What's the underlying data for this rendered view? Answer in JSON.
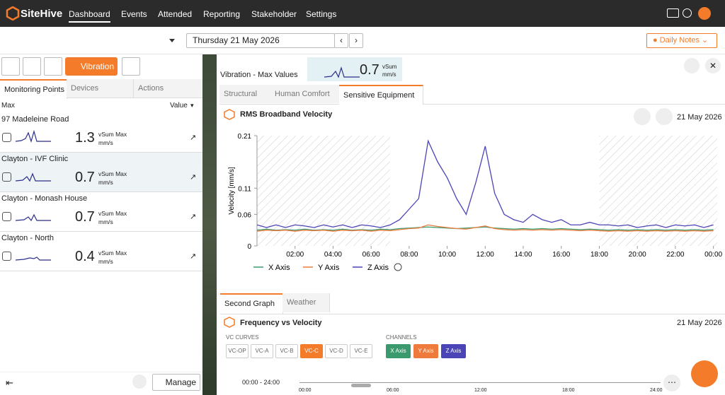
{
  "nav": {
    "brand": "SiteHive",
    "items": [
      "Dashboard",
      "Events",
      "Attended",
      "Reporting",
      "Stakeholder",
      "Settings"
    ]
  },
  "toolbar": {
    "date": "Thursday 21 May 2026",
    "notes": "Daily Notes"
  },
  "left": {
    "mode": "Vibration",
    "tabs": [
      "Monitoring Points",
      "Devices",
      "Actions"
    ],
    "col_left": "Max",
    "col_right": "Value",
    "points": [
      {
        "name": "97 Madeleine Road",
        "value": "1.3",
        "unit1": "vSum Max",
        "unit2": "mm/s"
      },
      {
        "name": "Clayton - IVF Clinic",
        "value": "0.7",
        "unit1": "vSum Max",
        "unit2": "mm/s"
      },
      {
        "name": "Clayton - Monash House",
        "value": "0.7",
        "unit1": "vSum Max",
        "unit2": "mm/s"
      },
      {
        "name": "Clayton - North",
        "value": "0.4",
        "unit1": "vSum Max",
        "unit2": "mm/s"
      }
    ],
    "manage": "Manage"
  },
  "right": {
    "heading": "Vibration - Max Values",
    "summary_value": "0.7",
    "summary_unit1": "vSum",
    "summary_unit2": "mm/s",
    "tabs": [
      "Structural",
      "Human Comfort",
      "Sensitive Equipment"
    ]
  },
  "chart_data": {
    "type": "line",
    "title": "RMS Broadband Velocity",
    "date": "21 May 2026",
    "y_label": "Velocity [mm/s]",
    "ylim": [
      0,
      0.21
    ],
    "yticks": [
      0,
      0.06,
      0.11,
      0.21
    ],
    "xlim": [
      0,
      24.2
    ],
    "xticks": [
      {
        "value": 2,
        "label": "02:00"
      },
      {
        "value": 4,
        "label": "04:00"
      },
      {
        "value": 6,
        "label": "06:00"
      },
      {
        "value": 8,
        "label": "08:00"
      },
      {
        "value": 10,
        "label": "10:00"
      },
      {
        "value": 12,
        "label": "12:00"
      },
      {
        "value": 14,
        "label": "14:00"
      },
      {
        "value": 16,
        "label": "16:00"
      },
      {
        "value": 18,
        "label": "18:00"
      },
      {
        "value": 20,
        "label": "20:00"
      },
      {
        "value": 22,
        "label": "22:00"
      },
      {
        "value": 24,
        "label": "00:00"
      }
    ],
    "shaded": [
      [
        0,
        7
      ],
      [
        18,
        24.2
      ]
    ],
    "x": [
      0,
      0.5,
      1,
      1.5,
      2,
      2.5,
      3,
      3.5,
      4,
      4.5,
      5,
      5.5,
      6,
      6.5,
      7,
      7.5,
      8,
      8.5,
      9,
      9.5,
      10,
      10.5,
      11,
      11.5,
      12,
      12.5,
      13,
      13.5,
      14,
      14.5,
      15,
      15.5,
      16,
      16.5,
      17,
      17.5,
      18,
      18.5,
      19,
      19.5,
      20,
      20.5,
      21,
      21.5,
      22,
      22.5,
      23,
      23.5,
      24
    ],
    "series": [
      {
        "name": "X Axis",
        "color": "#3a9a6e",
        "values": [
          0.03,
          0.032,
          0.03,
          0.031,
          0.03,
          0.032,
          0.03,
          0.031,
          0.03,
          0.032,
          0.03,
          0.031,
          0.03,
          0.032,
          0.031,
          0.033,
          0.034,
          0.035,
          0.036,
          0.035,
          0.034,
          0.033,
          0.034,
          0.035,
          0.036,
          0.034,
          0.033,
          0.032,
          0.033,
          0.032,
          0.033,
          0.032,
          0.033,
          0.032,
          0.031,
          0.032,
          0.031,
          0.03,
          0.031,
          0.03,
          0.031,
          0.03,
          0.031,
          0.03,
          0.031,
          0.03,
          0.031,
          0.03,
          0.031
        ]
      },
      {
        "name": "Y Axis",
        "color": "#ee7a3c",
        "values": [
          0.028,
          0.03,
          0.029,
          0.03,
          0.028,
          0.03,
          0.029,
          0.03,
          0.028,
          0.03,
          0.029,
          0.03,
          0.028,
          0.03,
          0.029,
          0.031,
          0.033,
          0.034,
          0.04,
          0.037,
          0.035,
          0.033,
          0.032,
          0.035,
          0.038,
          0.033,
          0.031,
          0.03,
          0.031,
          0.03,
          0.031,
          0.03,
          0.031,
          0.03,
          0.029,
          0.03,
          0.029,
          0.028,
          0.029,
          0.028,
          0.029,
          0.028,
          0.029,
          0.028,
          0.029,
          0.028,
          0.029,
          0.028,
          0.029
        ]
      },
      {
        "name": "Z Axis",
        "color": "#4b44b6",
        "values": [
          0.04,
          0.035,
          0.04,
          0.035,
          0.04,
          0.038,
          0.035,
          0.04,
          0.036,
          0.04,
          0.035,
          0.04,
          0.038,
          0.035,
          0.04,
          0.05,
          0.07,
          0.09,
          0.2,
          0.16,
          0.13,
          0.09,
          0.06,
          0.12,
          0.19,
          0.1,
          0.06,
          0.05,
          0.045,
          0.06,
          0.05,
          0.045,
          0.05,
          0.04,
          0.04,
          0.045,
          0.04,
          0.04,
          0.038,
          0.04,
          0.035,
          0.038,
          0.04,
          0.035,
          0.04,
          0.038,
          0.04,
          0.035,
          0.04
        ]
      }
    ]
  },
  "second": {
    "tabs": [
      "Second Graph",
      "Weather"
    ],
    "title": "Frequency vs Velocity",
    "date": "21 May 2026",
    "vc_label": "VC CURVES",
    "vc": [
      "VC-OP",
      "VC-A",
      "VC-B",
      "VC-C",
      "VC-D",
      "VC-E"
    ],
    "channels_label": "CHANNELS",
    "channels": [
      "X Axis",
      "Y Axis",
      "Z Axis"
    ],
    "range": "00:00 - 24:00",
    "slider_ticks": [
      "00:00",
      "06:00",
      "12:00",
      "18:00",
      "24:00"
    ]
  }
}
